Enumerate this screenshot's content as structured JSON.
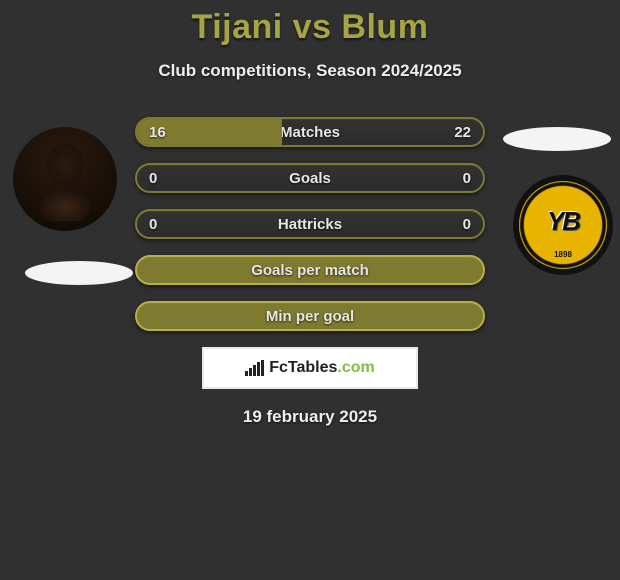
{
  "title": "Tijani vs Blum",
  "title_color": "#a7a444",
  "subtitle": "Club competitions, Season 2024/2025",
  "background_color": "#303030",
  "text_color": "#e6e6e6",
  "date": "19 february 2025",
  "stat_bars": [
    {
      "label": "Matches",
      "left": "16",
      "right": "22",
      "fill_pct": 42,
      "fill_color": "#7e7a2f",
      "border_color": "#7e7a2f"
    },
    {
      "label": "Goals",
      "left": "0",
      "right": "0",
      "fill_pct": 0,
      "fill_color": "#7e7a2f",
      "border_color": "#7e7a2f"
    },
    {
      "label": "Hattricks",
      "left": "0",
      "right": "0",
      "fill_pct": 0,
      "fill_color": "#7e7a2f",
      "border_color": "#7e7a2f"
    },
    {
      "label": "Goals per match",
      "left": "",
      "right": "",
      "fill_pct": 100,
      "fill_color": "#7e7a2f",
      "border_color": "#b6b04a"
    },
    {
      "label": "Min per goal",
      "left": "",
      "right": "",
      "fill_pct": 100,
      "fill_color": "#7e7a2f",
      "border_color": "#b6b04a"
    }
  ],
  "brand": {
    "name": "FcTables",
    "domain": ".com"
  },
  "right_logo": {
    "text": "YB",
    "year": "1898",
    "ring_color": "#e9b400",
    "bg_color": "#111"
  },
  "avatar_left": {
    "alt": "player-photo"
  },
  "ellipse_color": "#f4f4f4"
}
